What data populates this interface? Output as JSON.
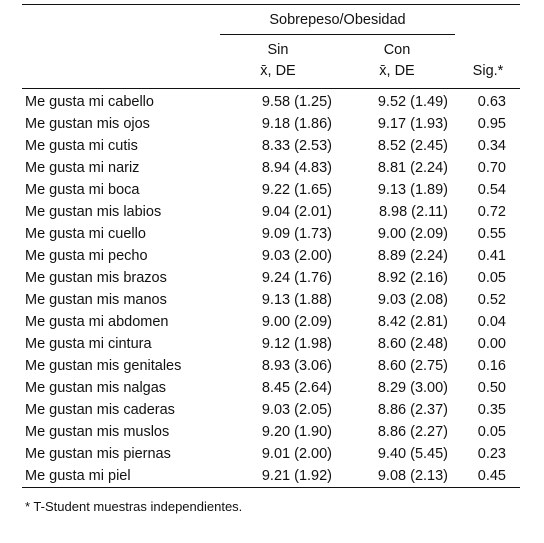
{
  "header": {
    "group": "Sobrepeso/Obesidad",
    "columns": [
      {
        "name": "Sin",
        "stat": "x̄, DE"
      },
      {
        "name": "Con",
        "stat": "x̄, DE"
      }
    ],
    "sig": "Sig.*"
  },
  "table": {
    "rows": [
      [
        "Me gusta mi cabello",
        "9.58 (1.25)",
        "9.52 (1.49)",
        "0.63"
      ],
      [
        "Me gustan mis ojos",
        "9.18 (1.86)",
        "9.17 (1.93)",
        "0.95"
      ],
      [
        "Me gusta mi cutis",
        "8.33 (2.53)",
        "8.52 (2.45)",
        "0.34"
      ],
      [
        "Me gusta mi nariz",
        "8.94 (4.83)",
        "8.81 (2.24)",
        "0.70"
      ],
      [
        "Me gusta mi boca",
        "9.22 (1.65)",
        "9.13 (1.89)",
        "0.54"
      ],
      [
        "Me gustan mis labios",
        "9.04 (2.01)",
        "8.98 (2.11)",
        "0.72"
      ],
      [
        "Me gusta mi cuello",
        "9.09 (1.73)",
        "9.00 (2.09)",
        "0.55"
      ],
      [
        "Me gusta mi pecho",
        "9.03 (2.00)",
        "8.89 (2.24)",
        "0.41"
      ],
      [
        "Me gustan mis brazos",
        "9.24 (1.76)",
        "8.92 (2.16)",
        "0.05"
      ],
      [
        "Me gustan mis manos",
        "9.13 (1.88)",
        "9.03 (2.08)",
        "0.52"
      ],
      [
        "Me gusta mi abdomen",
        "9.00 (2.09)",
        "8.42 (2.81)",
        "0.04"
      ],
      [
        "Me gusta mi cintura",
        "9.12 (1.98)",
        "8.60 (2.48)",
        "0.00"
      ],
      [
        "Me gustan mis genitales",
        "8.93 (3.06)",
        "8.60 (2.75)",
        "0.16"
      ],
      [
        "Me gustan mis nalgas",
        "8.45 (2.64)",
        "8.29 (3.00)",
        "0.50"
      ],
      [
        "Me gustan mis caderas",
        "9.03 (2.05)",
        "8.86 (2.37)",
        "0.35"
      ],
      [
        "Me gustan mis muslos",
        "9.20 (1.90)",
        "8.86 (2.27)",
        "0.05"
      ],
      [
        "Me gustan mis piernas",
        "9.01 (2.00)",
        "9.40 (5.45)",
        "0.23"
      ],
      [
        "Me gusta mi piel",
        "9.21 (1.92)",
        "9.08 (2.13)",
        "0.45"
      ]
    ]
  },
  "footnote": "* T-Student muestras independientes."
}
